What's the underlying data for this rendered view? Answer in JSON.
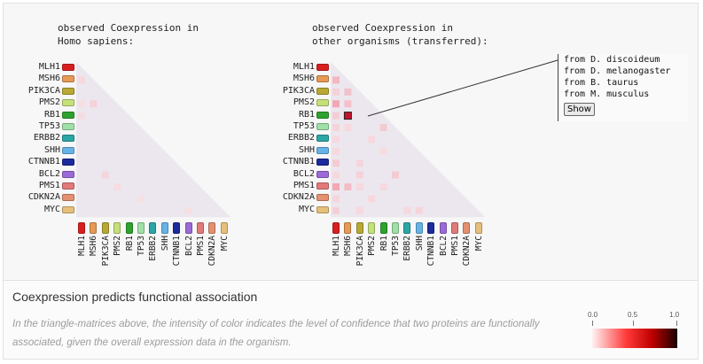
{
  "panel_left": {
    "title_line1": "observed Coexpression in",
    "title_line2": "Homo sapiens:"
  },
  "panel_right": {
    "title_line1": "observed Coexpression in",
    "title_line2": "other organisms (transferred):"
  },
  "proteins": [
    {
      "name": "MLH1",
      "color": "#d81f1f"
    },
    {
      "name": "MSH6",
      "color": "#e69a55"
    },
    {
      "name": "PIK3CA",
      "color": "#b9a834"
    },
    {
      "name": "PMS2",
      "color": "#c6e07a"
    },
    {
      "name": "RB1",
      "color": "#2ea22e"
    },
    {
      "name": "TP53",
      "color": "#9fe0a6"
    },
    {
      "name": "ERBB2",
      "color": "#2aa6a6"
    },
    {
      "name": "SHH",
      "color": "#66b3e8"
    },
    {
      "name": "CTNNB1",
      "color": "#1c2a9c"
    },
    {
      "name": "BCL2",
      "color": "#9b6ad8"
    },
    {
      "name": "PMS1",
      "color": "#e27a7a"
    },
    {
      "name": "CDKN2A",
      "color": "#e59070"
    },
    {
      "name": "MYC",
      "color": "#e6c07a"
    }
  ],
  "tooltip": {
    "lines": [
      "from D. discoideum",
      "from D. melanogaster",
      "from B. taurus",
      "from M. musculus"
    ],
    "show_label": "Show"
  },
  "footer": {
    "title": "Coexpression predicts functional association",
    "desc": "In the triangle-matrices above, the intensity of color indicates the level of confidence that two proteins are functionally associated, given the overall expression data in the organism."
  },
  "legend": {
    "ticks": [
      "0.0",
      "0.5",
      "1.0"
    ]
  }
}
